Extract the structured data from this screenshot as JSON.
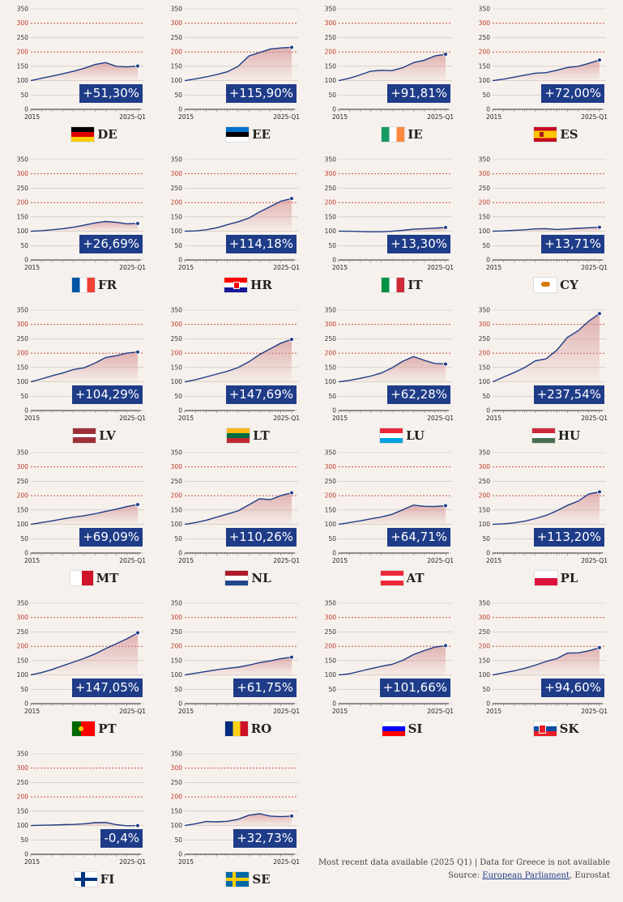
{
  "chart_data": {
    "type": "area",
    "ylim": [
      0,
      350
    ],
    "yticks": [
      0,
      50,
      100,
      150,
      200,
      250,
      300,
      350
    ],
    "x_start_label": "2015",
    "x_end_label": "2025-Q1",
    "colors": {
      "line": "#1f3c88",
      "badge": "#1f3c88",
      "fill": "#d89a9a",
      "reference": "#c0392b"
    },
    "countries": [
      {
        "code": "DE",
        "change": "+51,30%",
        "flag": "de",
        "values": [
          100,
          108,
          116,
          124,
          133,
          143,
          156,
          163,
          150,
          148,
          151
        ]
      },
      {
        "code": "EE",
        "change": "+115,90%",
        "flag": "ee",
        "values": [
          100,
          106,
          113,
          121,
          131,
          150,
          186,
          198,
          210,
          214,
          216
        ]
      },
      {
        "code": "IE",
        "change": "+91,81%",
        "flag": "ie",
        "values": [
          100,
          108,
          120,
          133,
          136,
          135,
          145,
          163,
          171,
          186,
          192
        ]
      },
      {
        "code": "ES",
        "change": "+72,00%",
        "flag": "es",
        "values": [
          100,
          105,
          112,
          119,
          126,
          128,
          136,
          146,
          150,
          160,
          172
        ]
      },
      {
        "code": "FR",
        "change": "+26,69%",
        "flag": "fr",
        "values": [
          100,
          102,
          105,
          109,
          114,
          121,
          129,
          134,
          131,
          126,
          127
        ]
      },
      {
        "code": "HR",
        "change": "+114,18%",
        "flag": "hr",
        "values": [
          100,
          101,
          105,
          112,
          123,
          133,
          146,
          167,
          186,
          205,
          214
        ]
      },
      {
        "code": "IT",
        "change": "+13,30%",
        "flag": "it",
        "values": [
          100,
          100,
          99,
          98,
          98,
          100,
          103,
          107,
          109,
          111,
          113
        ]
      },
      {
        "code": "CY",
        "change": "+13,71%",
        "flag": "cy",
        "values": [
          100,
          101,
          103,
          105,
          108,
          109,
          106,
          108,
          110,
          112,
          114
        ]
      },
      {
        "code": "LV",
        "change": "+104,29%",
        "flag": "lv",
        "values": [
          100,
          110,
          121,
          131,
          143,
          149,
          165,
          185,
          191,
          200,
          204
        ]
      },
      {
        "code": "LT",
        "change": "+147,69%",
        "flag": "lt",
        "values": [
          100,
          107,
          117,
          127,
          137,
          150,
          170,
          195,
          215,
          235,
          248
        ]
      },
      {
        "code": "LU",
        "change": "+62,28%",
        "flag": "lu",
        "values": [
          100,
          105,
          112,
          120,
          131,
          149,
          172,
          188,
          175,
          164,
          162
        ]
      },
      {
        "code": "HU",
        "change": "+237,54%",
        "flag": "hu",
        "values": [
          100,
          116,
          132,
          150,
          173,
          180,
          210,
          255,
          278,
          312,
          338
        ]
      },
      {
        "code": "MT",
        "change": "+69,09%",
        "flag": "mt",
        "values": [
          100,
          106,
          112,
          119,
          125,
          130,
          137,
          145,
          153,
          162,
          169
        ]
      },
      {
        "code": "NL",
        "change": "+110,26%",
        "flag": "nl",
        "values": [
          100,
          106,
          114,
          125,
          136,
          147,
          168,
          189,
          186,
          200,
          210
        ]
      },
      {
        "code": "AT",
        "change": "+64,71%",
        "flag": "at",
        "values": [
          100,
          106,
          112,
          119,
          126,
          135,
          151,
          167,
          163,
          162,
          165
        ]
      },
      {
        "code": "PL",
        "change": "+113,20%",
        "flag": "pl",
        "values": [
          100,
          102,
          105,
          111,
          120,
          131,
          147,
          166,
          181,
          206,
          213
        ]
      },
      {
        "code": "PT",
        "change": "+147,05%",
        "flag": "pt",
        "values": [
          100,
          108,
          119,
          132,
          145,
          158,
          173,
          192,
          209,
          226,
          247
        ]
      },
      {
        "code": "RO",
        "change": "+61,75%",
        "flag": "ro",
        "values": [
          100,
          106,
          112,
          118,
          123,
          127,
          134,
          143,
          149,
          157,
          162
        ]
      },
      {
        "code": "SI",
        "change": "+101,66%",
        "flag": "si",
        "values": [
          100,
          104,
          113,
          122,
          130,
          137,
          151,
          171,
          185,
          197,
          202
        ]
      },
      {
        "code": "SK",
        "change": "+94,60%",
        "flag": "sk",
        "values": [
          100,
          107,
          114,
          123,
          134,
          147,
          157,
          176,
          177,
          184,
          195
        ]
      },
      {
        "code": "FI",
        "change": "-0,4%",
        "flag": "fi",
        "values": [
          100,
          101,
          102,
          103,
          104,
          106,
          110,
          111,
          103,
          99,
          100
        ]
      },
      {
        "code": "SE",
        "change": "+32,73%",
        "flag": "se",
        "values": [
          100,
          106,
          114,
          113,
          115,
          122,
          136,
          141,
          133,
          131,
          133
        ]
      }
    ]
  },
  "footer": {
    "line1": "Most recent data available (2025 Q1) | Data for Greece is not available",
    "source_prefix": "Source: ",
    "source_link": "European Parliament",
    "source_suffix": ", Eurostat"
  }
}
